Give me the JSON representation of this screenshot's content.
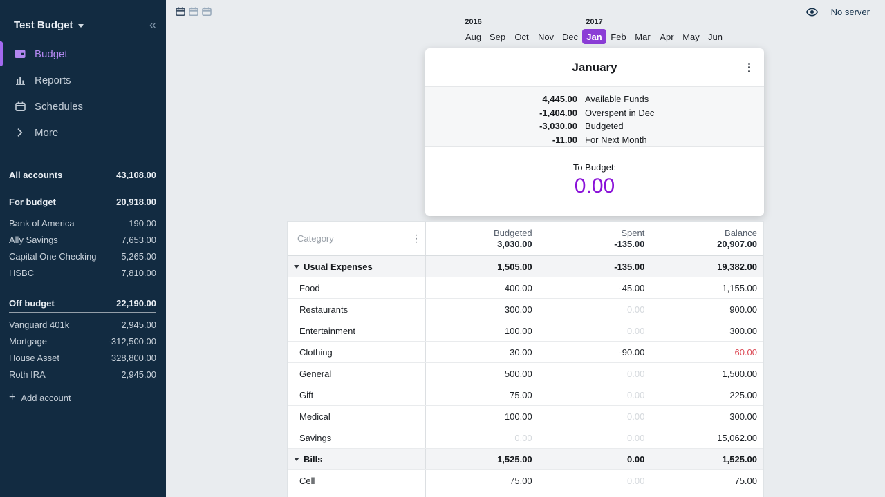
{
  "sidebar": {
    "title": "Test Budget",
    "nav": [
      {
        "label": "Budget",
        "icon": "wallet-icon",
        "active": true
      },
      {
        "label": "Reports",
        "icon": "bar-chart-icon",
        "active": false
      },
      {
        "label": "Schedules",
        "icon": "calendar-icon",
        "active": false
      },
      {
        "label": "More",
        "icon": "chevron-right-icon",
        "active": false
      }
    ],
    "all_accounts": {
      "label": "All accounts",
      "value": "43,108.00"
    },
    "groups": [
      {
        "label": "For budget",
        "value": "20,918.00",
        "accounts": [
          {
            "name": "Bank of America",
            "value": "190.00"
          },
          {
            "name": "Ally Savings",
            "value": "7,653.00"
          },
          {
            "name": "Capital One Checking",
            "value": "5,265.00"
          },
          {
            "name": "HSBC",
            "value": "7,810.00"
          }
        ]
      },
      {
        "label": "Off budget",
        "value": "22,190.00",
        "accounts": [
          {
            "name": "Vanguard 401k",
            "value": "2,945.00"
          },
          {
            "name": "Mortgage",
            "value": "-312,500.00"
          },
          {
            "name": "House Asset",
            "value": "328,800.00"
          },
          {
            "name": "Roth IRA",
            "value": "2,945.00"
          }
        ]
      }
    ],
    "add_account": "Add account"
  },
  "topbar": {
    "no_server": "No server",
    "month_view_toggles": 3,
    "active_toggle_index": 0
  },
  "month_picker": {
    "months": [
      "Aug",
      "Sep",
      "Oct",
      "Nov",
      "Dec",
      "Jan",
      "Feb",
      "Mar",
      "Apr",
      "May",
      "Jun"
    ],
    "selected_index": 5,
    "years": [
      {
        "label": "2016",
        "month_index": 0
      },
      {
        "label": "2017",
        "month_index": 5
      }
    ]
  },
  "month_card": {
    "title": "January",
    "summary": [
      {
        "value": "4,445.00",
        "label": "Available Funds"
      },
      {
        "value": "-1,404.00",
        "label": "Overspent in Dec"
      },
      {
        "value": "-3,030.00",
        "label": "Budgeted"
      },
      {
        "value": "-11.00",
        "label": "For Next Month"
      }
    ],
    "to_budget": {
      "label": "To Budget:",
      "value": "0.00"
    }
  },
  "budget_table": {
    "category_header": "Category",
    "columns": [
      {
        "label": "Budgeted",
        "total": "3,030.00"
      },
      {
        "label": "Spent",
        "total": "-135.00"
      },
      {
        "label": "Balance",
        "total": "20,907.00"
      }
    ],
    "rows": [
      {
        "type": "group",
        "name": "Usual Expenses",
        "budgeted": "1,505.00",
        "spent": "-135.00",
        "balance": "19,382.00"
      },
      {
        "type": "category",
        "name": "Food",
        "budgeted": "400.00",
        "spent": "-45.00",
        "balance": "1,155.00"
      },
      {
        "type": "category",
        "name": "Restaurants",
        "budgeted": "300.00",
        "spent": "0.00",
        "spent_muted": true,
        "balance": "900.00"
      },
      {
        "type": "category",
        "name": "Entertainment",
        "budgeted": "100.00",
        "spent": "0.00",
        "spent_muted": true,
        "balance": "300.00"
      },
      {
        "type": "category",
        "name": "Clothing",
        "budgeted": "30.00",
        "spent": "-90.00",
        "balance": "-60.00",
        "balance_negative": true
      },
      {
        "type": "category",
        "name": "General",
        "budgeted": "500.00",
        "spent": "0.00",
        "spent_muted": true,
        "balance": "1,500.00"
      },
      {
        "type": "category",
        "name": "Gift",
        "budgeted": "75.00",
        "spent": "0.00",
        "spent_muted": true,
        "balance": "225.00"
      },
      {
        "type": "category",
        "name": "Medical",
        "budgeted": "100.00",
        "spent": "0.00",
        "spent_muted": true,
        "balance": "300.00"
      },
      {
        "type": "category",
        "name": "Savings",
        "budgeted": "0.00",
        "budgeted_muted": true,
        "spent": "0.00",
        "spent_muted": true,
        "balance": "15,062.00"
      },
      {
        "type": "group",
        "name": "Bills",
        "budgeted": "1,525.00",
        "spent": "0.00",
        "balance": "1,525.00"
      },
      {
        "type": "category",
        "name": "Cell",
        "budgeted": "75.00",
        "spent": "0.00",
        "spent_muted": true,
        "balance": "75.00"
      }
    ]
  },
  "colors": {
    "sidebar_bg": "#122b41",
    "accent_purple": "#8b3dd6",
    "active_nav_purple": "#b287f0",
    "to_budget_purple": "#8a12d8",
    "negative_red": "#dc4b57",
    "main_bg": "#e9ecef"
  }
}
